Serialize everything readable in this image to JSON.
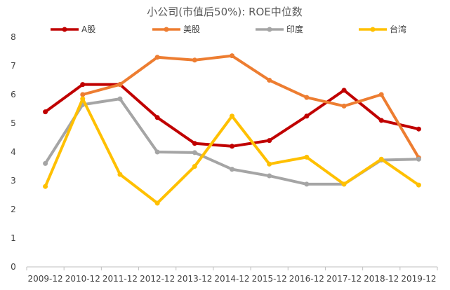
{
  "chart_data": {
    "type": "line",
    "title": "小公司(市值后50%): ROE中位数",
    "xlabel": "",
    "ylabel": "",
    "categories": [
      "2009-12",
      "2010-12",
      "2011-12",
      "2012-12",
      "2013-12",
      "2014-12",
      "2015-12",
      "2016-12",
      "2017-12",
      "2018-12",
      "2019-12"
    ],
    "ylim": [
      0,
      8
    ],
    "yticks": [
      0,
      1,
      2,
      3,
      4,
      5,
      6,
      7,
      8
    ],
    "grid": false,
    "legend": "top",
    "series": [
      {
        "name": "A股",
        "color": "#c00000",
        "values": [
          5.4,
          6.35,
          6.35,
          5.2,
          4.3,
          4.2,
          4.4,
          5.25,
          6.15,
          5.1,
          4.8
        ]
      },
      {
        "name": "美股",
        "color": "#ed7d31",
        "values": [
          null,
          6.0,
          6.35,
          7.3,
          7.2,
          7.35,
          6.5,
          5.9,
          5.6,
          6.0,
          3.8
        ]
      },
      {
        "name": "印度",
        "color": "#a5a5a5",
        "values": [
          3.6,
          5.65,
          5.85,
          4.0,
          3.98,
          3.4,
          3.17,
          2.88,
          2.88,
          3.72,
          3.75
        ]
      },
      {
        "name": "台湾",
        "color": "#ffc000",
        "values": [
          2.8,
          5.85,
          3.22,
          2.22,
          3.5,
          5.25,
          3.58,
          3.82,
          2.88,
          3.75,
          2.85
        ]
      }
    ]
  }
}
